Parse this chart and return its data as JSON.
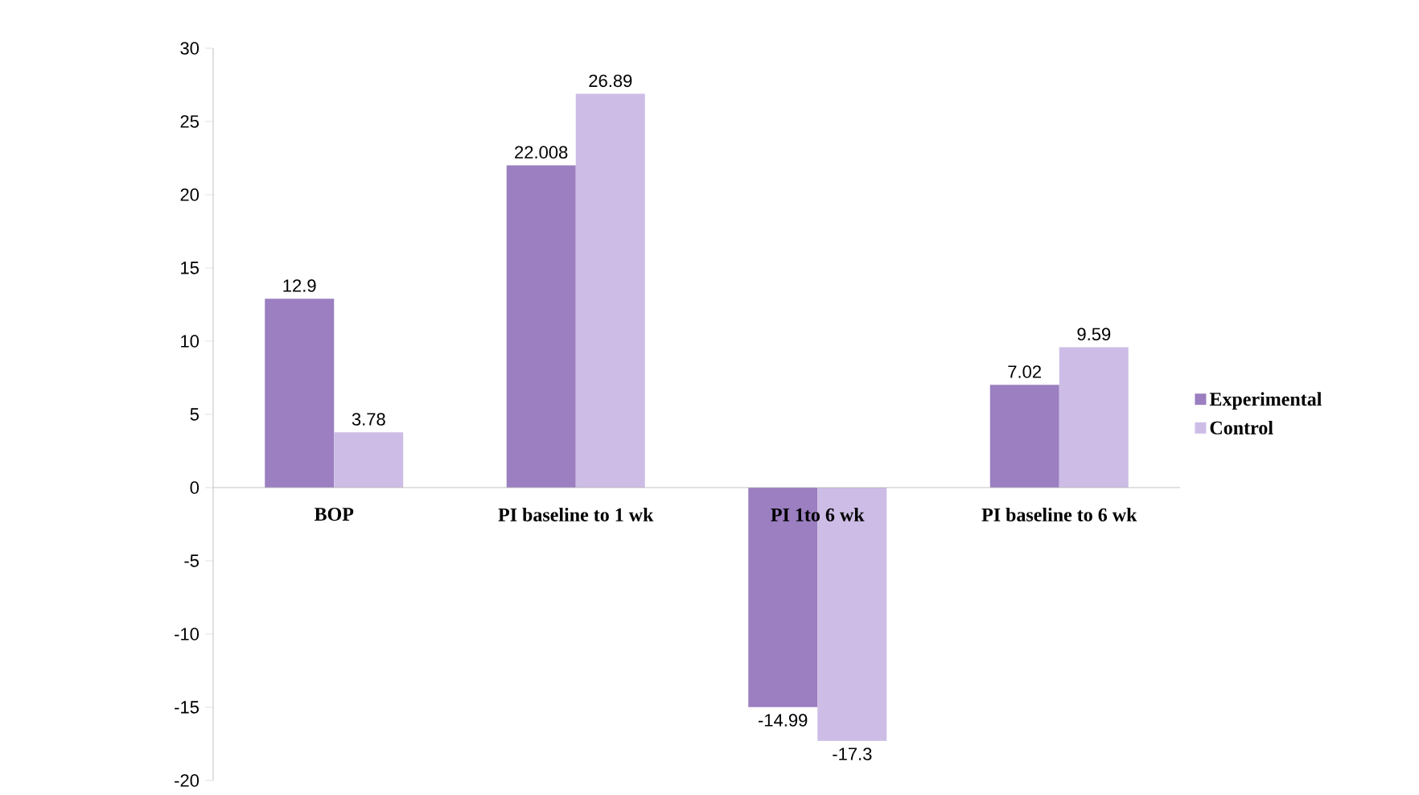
{
  "chart_data": {
    "type": "bar",
    "categories": [
      "BOP",
      "PI baseline to 1 wk",
      "PI 1to 6 wk",
      "PI baseline to 6 wk"
    ],
    "series": [
      {
        "name": "Experimental",
        "color": "#9b7fc0",
        "values": [
          12.9,
          22.008,
          -14.99,
          7.02
        ]
      },
      {
        "name": "Control",
        "color": "#cdbde6",
        "values": [
          3.78,
          26.89,
          -17.3,
          9.59
        ]
      }
    ],
    "ylim": [
      -20,
      30
    ],
    "yticks": [
      -20,
      -15,
      -10,
      -5,
      0,
      5,
      10,
      15,
      20,
      25,
      30
    ],
    "data_labels": true,
    "legend": "right",
    "grid": false
  }
}
